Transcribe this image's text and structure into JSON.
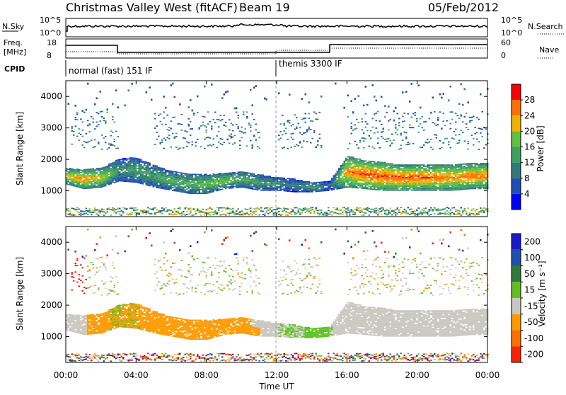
{
  "header": {
    "station": "Christmas Valley West (fitACF)",
    "beam": "Beam 19",
    "date": "05/Feb/2012"
  },
  "panels": {
    "nsky": {
      "left_label": "N.Sky",
      "right_label": "N.Search",
      "tick_hi": "10^5",
      "tick_lo": "10^0"
    },
    "freq": {
      "left_label_1": "Freq.",
      "left_label_2": "[MHz]",
      "left_ticks": [
        "18",
        "8"
      ],
      "right_label": "Nave",
      "right_ticks": [
        "60",
        "0"
      ]
    },
    "cpid": {
      "label": "CPID",
      "modes": [
        "normal (fast) 151 IF",
        "themis 3300 IF"
      ]
    }
  },
  "power_panel": {
    "ylabel": "Slant Range [km]",
    "cbar_label": "Power [dB]"
  },
  "velocity_panel": {
    "ylabel": "Slant Range [km]",
    "cbar_label": "Velocity [m s⁻¹]"
  },
  "xlabel": "Time UT",
  "colors": {
    "power": [
      "#0000ff",
      "#1f4fb0",
      "#2f7a7a",
      "#3fa060",
      "#60c040",
      "#f0b000",
      "#ff7000",
      "#ff0000"
    ],
    "velocity": [
      "#1a1acc",
      "#1f4fb0",
      "#2f7a3a",
      "#60c020",
      "#c8c8c0",
      "#ff9a00",
      "#ff7000",
      "#ff2000",
      "#e00000"
    ]
  },
  "chart_data": [
    {
      "type": "heatmap",
      "title": "Power",
      "x_ticks": [
        "00:00",
        "04:00",
        "08:00",
        "12:00",
        "16:00",
        "20:00",
        "00:00"
      ],
      "x_hours": [
        0,
        4,
        8,
        12,
        16,
        20,
        24
      ],
      "xlabel": "Time UT",
      "ylabel": "Slant Range [km]",
      "y_ticks": [
        1000,
        2000,
        3000,
        4000
      ],
      "ylim": [
        180,
        4500
      ],
      "colorbar_ticks": [
        4,
        8,
        12,
        16,
        20,
        24,
        28
      ],
      "colorbar_range": [
        0,
        32
      ],
      "colorbar_label": "Power [dB]",
      "bands": [
        {
          "t": [
            0,
            1,
            2,
            3,
            4,
            5,
            6,
            7,
            8,
            9,
            10,
            11,
            12,
            13,
            14,
            15,
            16,
            17,
            18,
            19,
            20,
            21,
            22,
            23,
            24
          ],
          "center": [
            1450,
            1350,
            1400,
            1650,
            1650,
            1450,
            1300,
            1200,
            1200,
            1300,
            1350,
            1250,
            1200,
            1150,
            1100,
            1150,
            1600,
            1500,
            1450,
            1400,
            1400,
            1400,
            1400,
            1450,
            1450
          ],
          "width": [
            250,
            300,
            300,
            350,
            400,
            350,
            300,
            300,
            300,
            250,
            250,
            250,
            200,
            200,
            150,
            150,
            500,
            450,
            450,
            400,
            400,
            400,
            400,
            400,
            400
          ],
          "power": [
            22,
            26,
            22,
            12,
            14,
            14,
            16,
            16,
            18,
            18,
            16,
            14,
            12,
            10,
            14,
            8,
            26,
            28,
            28,
            28,
            28,
            27,
            26,
            26,
            26
          ]
        }
      ]
    },
    {
      "type": "heatmap",
      "title": "Velocity",
      "x_ticks": [
        "00:00",
        "04:00",
        "08:00",
        "12:00",
        "16:00",
        "20:00",
        "00:00"
      ],
      "x_hours": [
        0,
        4,
        8,
        12,
        16,
        20,
        24
      ],
      "xlabel": "Time UT",
      "ylabel": "Slant Range [km]",
      "y_ticks": [
        1000,
        2000,
        3000,
        4000
      ],
      "ylim": [
        180,
        4500
      ],
      "colorbar_ticks": [
        "200",
        "100",
        "50",
        "15",
        "-15",
        "-50",
        "-100",
        "-200"
      ],
      "colorbar_range": [
        -250,
        250
      ],
      "colorbar_label": "Velocity [m s⁻¹]"
    }
  ],
  "cpid_change_hour": 12
}
